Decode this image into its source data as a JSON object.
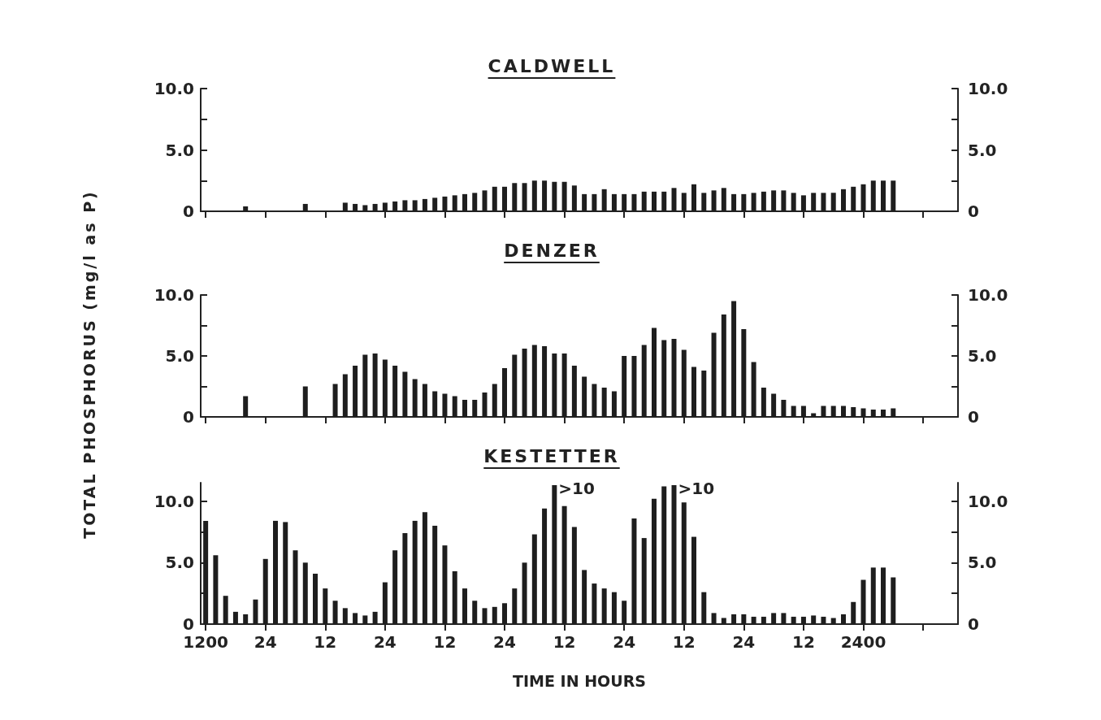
{
  "chart_data": [
    {
      "type": "bar",
      "title": "CALDWELL",
      "color": "#1e1e1e",
      "tick_labels": "y",
      "categories": [
        "1200",
        null,
        null,
        null,
        null,
        null,
        "24",
        null,
        null,
        null,
        null,
        null,
        "12",
        null,
        null,
        null,
        null,
        null,
        "24",
        null,
        null,
        null,
        null,
        null,
        "12",
        null,
        null,
        null,
        null,
        null,
        "24",
        null,
        null,
        null,
        null,
        null,
        "12",
        null,
        null,
        null,
        null,
        null,
        "24",
        null,
        null,
        null,
        null,
        null,
        "12",
        null,
        null,
        null,
        null,
        null,
        "24",
        null,
        null,
        null,
        null,
        null,
        "12",
        null,
        null,
        null,
        null,
        null,
        "2400",
        null,
        null,
        null,
        null,
        null,
        null,
        null,
        null,
        null
      ],
      "values": [
        null,
        null,
        null,
        null,
        0.4,
        null,
        null,
        null,
        null,
        null,
        0.6,
        null,
        null,
        null,
        0.7,
        0.6,
        0.5,
        0.6,
        0.7,
        0.8,
        0.9,
        0.9,
        1.0,
        1.1,
        1.2,
        1.3,
        1.4,
        1.5,
        1.7,
        2.0,
        2.0,
        2.3,
        2.3,
        2.5,
        2.5,
        2.4,
        2.4,
        2.1,
        1.4,
        1.4,
        1.8,
        1.4,
        1.4,
        1.4,
        1.6,
        1.6,
        1.6,
        1.9,
        1.5,
        2.2,
        1.5,
        1.7,
        1.9,
        1.4,
        1.4,
        1.5,
        1.6,
        1.7,
        1.7,
        1.5,
        1.3,
        1.5,
        1.5,
        1.5,
        1.8,
        2.0,
        2.2,
        2.5,
        2.5,
        2.5,
        null,
        null,
        null,
        null,
        null,
        null
      ],
      "ylim": [
        0,
        10
      ],
      "yticks": [
        {
          "value": 0,
          "label": "0"
        },
        {
          "value": 2.5,
          "label": null
        },
        {
          "value": 5,
          "label": "5.0"
        },
        {
          "value": 7.5,
          "label": null
        },
        {
          "value": 10,
          "label": "10.0"
        }
      ],
      "y2lim": [
        0,
        10
      ],
      "y2ticks": [
        {
          "value": 0,
          "label": "0"
        },
        {
          "value": 2.5,
          "label": null
        },
        {
          "value": 5,
          "label": "5.0"
        },
        {
          "value": 7.5,
          "label": null
        },
        {
          "value": 10,
          "label": "10.0"
        }
      ]
    },
    {
      "type": "bar",
      "title": "DENZER",
      "ylabel": "TOTAL PHOSPHORUS (mg/l as P)",
      "color": "#1e1e1e",
      "tick_labels": "y",
      "categories": [
        "1200",
        null,
        null,
        null,
        null,
        null,
        "24",
        null,
        null,
        null,
        null,
        null,
        "12",
        null,
        null,
        null,
        null,
        null,
        "24",
        null,
        null,
        null,
        null,
        null,
        "12",
        null,
        null,
        null,
        null,
        null,
        "24",
        null,
        null,
        null,
        null,
        null,
        "12",
        null,
        null,
        null,
        null,
        null,
        "24",
        null,
        null,
        null,
        null,
        null,
        "12",
        null,
        null,
        null,
        null,
        null,
        "24",
        null,
        null,
        null,
        null,
        null,
        "12",
        null,
        null,
        null,
        null,
        null,
        "2400",
        null,
        null,
        null,
        null,
        null,
        null,
        null,
        null,
        null
      ],
      "values": [
        null,
        null,
        null,
        null,
        1.7,
        null,
        null,
        null,
        null,
        null,
        2.5,
        null,
        null,
        2.7,
        3.5,
        4.2,
        5.1,
        5.2,
        4.7,
        4.2,
        3.7,
        3.1,
        2.7,
        2.1,
        1.9,
        1.7,
        1.4,
        1.4,
        2.0,
        2.7,
        4.0,
        5.1,
        5.6,
        5.9,
        5.8,
        5.2,
        5.2,
        4.2,
        3.3,
        2.7,
        2.4,
        2.1,
        5.0,
        5.0,
        5.9,
        7.3,
        6.3,
        6.4,
        5.5,
        4.1,
        3.8,
        6.9,
        8.4,
        9.5,
        7.2,
        4.5,
        2.4,
        1.9,
        1.4,
        0.9,
        0.9,
        0.3,
        0.9,
        0.9,
        0.9,
        0.8,
        0.7,
        0.6,
        0.6,
        0.7,
        null,
        null,
        null,
        null,
        null,
        null
      ],
      "ylim": [
        0,
        10
      ],
      "yticks": [
        0,
        {
          "value": 2.5,
          "label": null
        },
        {
          "value": 5,
          "label": "5.0"
        },
        {
          "value": 7.5,
          "label": null
        },
        {
          "value": 10,
          "label": "10.0"
        }
      ],
      "y2lim": [
        0,
        10
      ],
      "y2ticks": [
        0,
        {
          "value": 2.5,
          "label": null
        },
        {
          "value": 5,
          "label": "5.0"
        },
        {
          "value": 7.5,
          "label": null
        },
        {
          "value": 10,
          "label": "10.0"
        }
      ]
    },
    {
      "type": "bar",
      "title": "KESTETTER",
      "xlabel": "TIME IN HOURS",
      "color": "#1e1e1e",
      "categories": [
        "1200",
        null,
        null,
        null,
        null,
        null,
        "24",
        null,
        null,
        null,
        null,
        null,
        "12",
        null,
        null,
        null,
        null,
        null,
        "24",
        null,
        null,
        null,
        null,
        null,
        "12",
        null,
        null,
        null,
        null,
        null,
        "24",
        null,
        null,
        null,
        null,
        null,
        "12",
        null,
        null,
        null,
        null,
        null,
        "24",
        null,
        null,
        null,
        null,
        null,
        "12",
        null,
        null,
        null,
        null,
        null,
        "24",
        null,
        null,
        null,
        null,
        null,
        "12",
        null,
        null,
        null,
        null,
        null,
        "2400",
        null,
        null,
        null,
        null,
        null,
        null,
        null,
        null,
        null
      ],
      "values": [
        8.4,
        5.6,
        2.3,
        1.0,
        0.8,
        2.0,
        5.3,
        8.4,
        8.3,
        6.0,
        5.0,
        4.1,
        2.9,
        1.9,
        1.3,
        0.9,
        0.7,
        1.0,
        3.4,
        6.0,
        7.4,
        8.4,
        9.1,
        8.0,
        6.4,
        4.3,
        2.9,
        1.9,
        1.3,
        1.4,
        1.7,
        2.9,
        5.0,
        7.3,
        9.4,
        11.3,
        9.6,
        7.9,
        4.4,
        3.3,
        2.9,
        2.6,
        1.9,
        8.6,
        7.0,
        10.2,
        11.2,
        11.3,
        9.9,
        7.1,
        2.6,
        0.9,
        0.5,
        0.8,
        0.8,
        0.6,
        0.6,
        0.9,
        0.9,
        0.6,
        0.6,
        0.7,
        0.6,
        0.5,
        0.8,
        1.8,
        3.6,
        4.6,
        4.6,
        3.8,
        null,
        null,
        null,
        null,
        null,
        null
      ],
      "annotations": [
        ">10",
        ">10"
      ],
      "ylim": [
        0,
        11.5
      ],
      "yticks": [
        0,
        {
          "value": 2.5,
          "label": null
        },
        {
          "value": 5,
          "label": "5.0"
        },
        {
          "value": 7.5,
          "label": null
        },
        {
          "value": 10,
          "label": "10.0"
        }
      ],
      "y2lim": [
        0,
        11.5
      ],
      "y2ticks": [
        0,
        {
          "value": 2.5,
          "label": null
        },
        {
          "value": 5,
          "label": "5.0"
        },
        {
          "value": 7.5,
          "label": null
        },
        {
          "value": 10,
          "label": "10.0"
        }
      ]
    }
  ]
}
